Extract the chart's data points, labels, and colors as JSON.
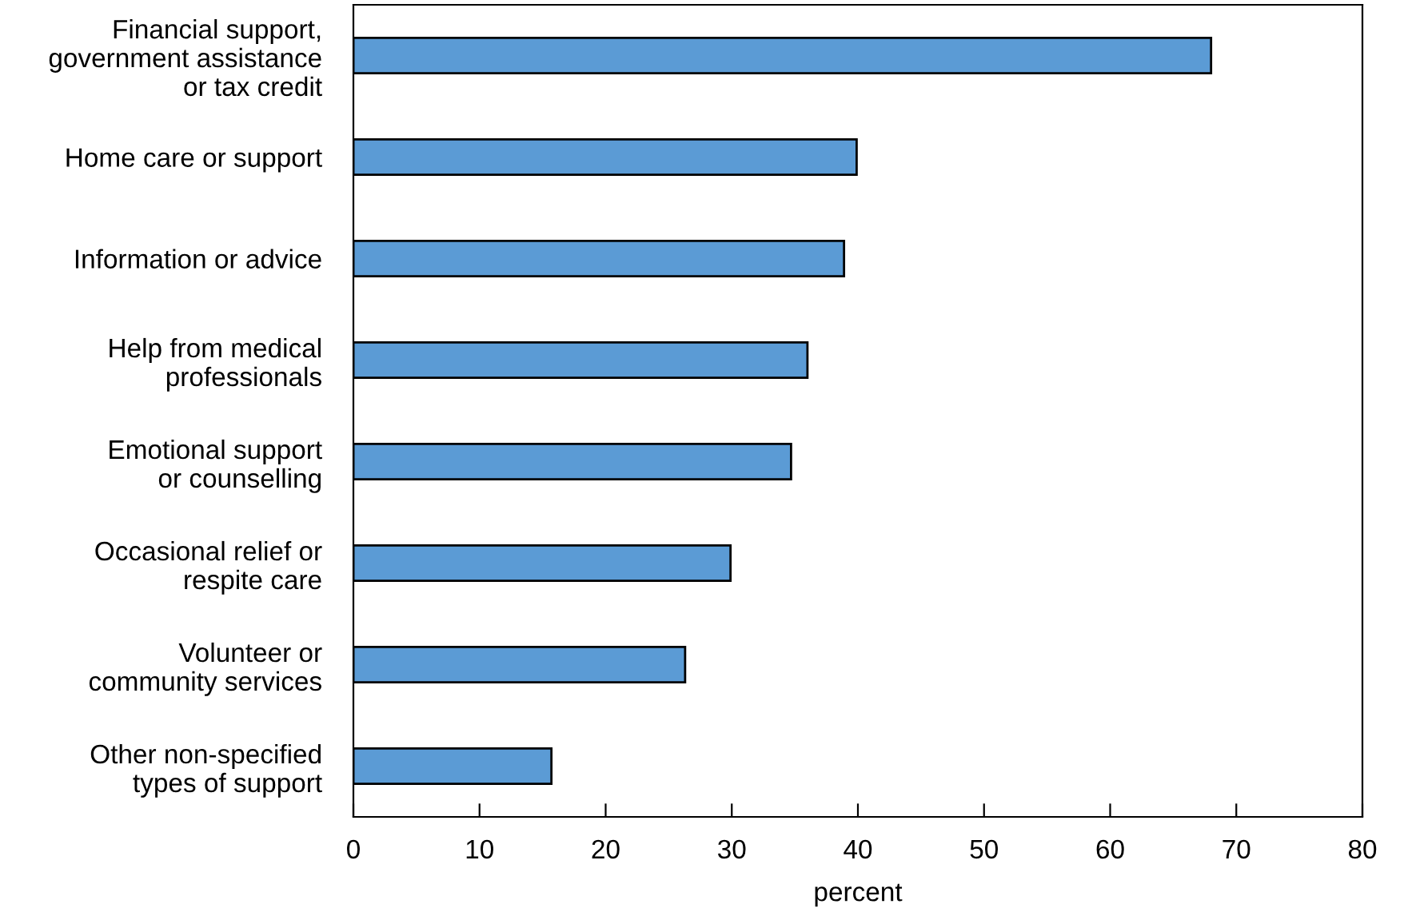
{
  "chart_data": {
    "type": "bar",
    "orientation": "horizontal",
    "xlabel": "percent",
    "categories": [
      "Financial support,\ngovernment assistance\nor tax credit",
      "Home care or support",
      "Information or advice",
      "Help from medical\nprofessionals",
      "Emotional support\nor counselling",
      "Occasional relief or\nrespite care",
      "Volunteer or\ncommunity services",
      "Other non-specified\ntypes of support"
    ],
    "values": [
      68.0,
      39.9,
      38.9,
      36.0,
      34.7,
      29.9,
      26.3,
      15.7
    ],
    "color": "#5b9bd5",
    "xlim": [
      0,
      80
    ],
    "xticks": [
      0,
      10,
      20,
      30,
      40,
      50,
      60,
      70,
      80
    ],
    "grid": false
  }
}
